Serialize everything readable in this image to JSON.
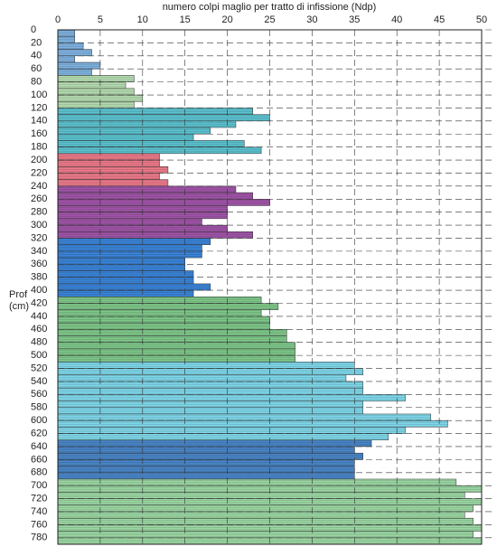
{
  "chart_data": {
    "type": "bar",
    "orientation": "horizontal",
    "title": "numero colpi maglio per tratto di infissione (Ndp)",
    "y_label": "Prof\n(cm)",
    "xlim": [
      0,
      50
    ],
    "xticks": [
      0,
      5,
      10,
      15,
      20,
      25,
      30,
      35,
      40,
      45,
      50
    ],
    "ylim": [
      0,
      790
    ],
    "yticks": [
      0,
      20,
      40,
      60,
      80,
      100,
      120,
      140,
      160,
      180,
      200,
      220,
      240,
      260,
      280,
      300,
      320,
      340,
      360,
      380,
      400,
      420,
      440,
      460,
      480,
      500,
      520,
      540,
      560,
      580,
      600,
      620,
      640,
      660,
      680,
      700,
      720,
      740,
      760,
      780
    ],
    "y": [
      0,
      10,
      20,
      30,
      40,
      50,
      60,
      70,
      80,
      90,
      100,
      110,
      120,
      130,
      140,
      150,
      160,
      170,
      180,
      190,
      200,
      210,
      220,
      230,
      240,
      250,
      260,
      270,
      280,
      290,
      300,
      310,
      320,
      330,
      340,
      350,
      360,
      370,
      380,
      390,
      400,
      410,
      420,
      430,
      440,
      450,
      460,
      470,
      480,
      490,
      500,
      510,
      520,
      530,
      540,
      550,
      560,
      570,
      580,
      590,
      600,
      610,
      620,
      630,
      640,
      650,
      660,
      670,
      680,
      690,
      700,
      710,
      720,
      730,
      740,
      750,
      760,
      770,
      780
    ],
    "values": [
      2,
      2,
      3,
      4,
      2,
      5,
      4,
      9,
      8,
      9,
      10,
      9,
      23,
      25,
      21,
      18,
      16,
      22,
      24,
      12,
      12,
      13,
      12,
      13,
      21,
      23,
      25,
      20,
      20,
      17,
      20,
      23,
      18,
      17,
      17,
      15,
      15,
      16,
      16,
      18,
      16,
      24,
      26,
      24,
      25,
      25,
      27,
      27,
      28,
      28,
      28,
      35,
      36,
      34,
      36,
      36,
      41,
      36,
      36,
      44,
      46,
      41,
      39,
      37,
      35,
      36,
      35,
      35,
      35,
      47,
      50,
      48,
      50,
      49,
      48,
      49,
      50,
      49,
      50
    ],
    "colors": [
      "#7fb2e0",
      "#7fb2e0",
      "#7fb2e0",
      "#7fb2e0",
      "#7fb2e0",
      "#7fb2e0",
      "#7fb2e0",
      "#b5dcb0",
      "#b5dcb0",
      "#b5dcb0",
      "#b5dcb0",
      "#b5dcb0",
      "#5cc2cf",
      "#5cc2cf",
      "#5cc2cf",
      "#5cc2cf",
      "#5cc2cf",
      "#5cc2cf",
      "#5cc2cf",
      "#ec7a8a",
      "#ec7a8a",
      "#ec7a8a",
      "#ec7a8a",
      "#ec7a8a",
      "#a055a8",
      "#a055a8",
      "#a055a8",
      "#a055a8",
      "#a055a8",
      "#a055a8",
      "#a055a8",
      "#a055a8",
      "#3a84d8",
      "#3a84d8",
      "#3a84d8",
      "#3a84d8",
      "#3a84d8",
      "#3a84d8",
      "#3a84d8",
      "#3a84d8",
      "#3a84d8",
      "#7fc88a",
      "#7fc88a",
      "#7fc88a",
      "#7fc88a",
      "#7fc88a",
      "#7fc88a",
      "#7fc88a",
      "#7fc88a",
      "#7fc88a",
      "#7fc88a",
      "#7fd8ea",
      "#7fd8ea",
      "#7fd8ea",
      "#7fd8ea",
      "#7fd8ea",
      "#7fd8ea",
      "#7fd8ea",
      "#7fd8ea",
      "#7fd8ea",
      "#7fd8ea",
      "#7fd8ea",
      "#7fd8ea",
      "#4a86c8",
      "#4a86c8",
      "#4a86c8",
      "#4a86c8",
      "#4a86c8",
      "#4a86c8",
      "#9cd8a4",
      "#9cd8a4",
      "#9cd8a4",
      "#9cd8a4",
      "#9cd8a4",
      "#9cd8a4",
      "#9cd8a4",
      "#9cd8a4",
      "#9cd8a4",
      "#9cd8a4"
    ],
    "grid": true
  }
}
